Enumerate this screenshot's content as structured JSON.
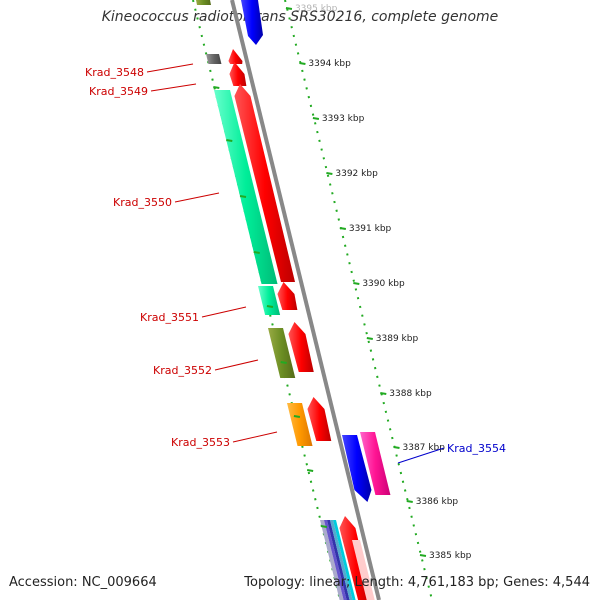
{
  "title": "Kineococcus radiotolerans SRS30216, complete genome",
  "footer": {
    "accession": "Accession: NC_009664",
    "info": "Topology: linear; Length: 4,761,183 bp; Genes: 4,544"
  },
  "ruler": {
    "ticks": [
      "3395 kbp",
      "3394 kbp",
      "3393 kbp",
      "3392 kbp",
      "3391 kbp",
      "3390 kbp",
      "3389 kbp",
      "3388 kbp",
      "3387 kbp",
      "3386 kbp",
      "3385 kbp"
    ]
  },
  "genes": [
    {
      "name": "Krad_3548",
      "color": "#cc0000"
    },
    {
      "name": "Krad_3549",
      "color": "#cc0000"
    },
    {
      "name": "Krad_3550",
      "color": "#cc0000"
    },
    {
      "name": "Krad_3551",
      "color": "#cc0000"
    },
    {
      "name": "Krad_3552",
      "color": "#cc0000"
    },
    {
      "name": "Krad_3553",
      "color": "#cc0000"
    },
    {
      "name": "Krad_3554",
      "color": "#0000cc"
    }
  ],
  "colors": {
    "forward_cds": "#ff0000",
    "reverse_cds": "#0000ff",
    "tick": "#22aa22",
    "backbone": "#888888"
  }
}
